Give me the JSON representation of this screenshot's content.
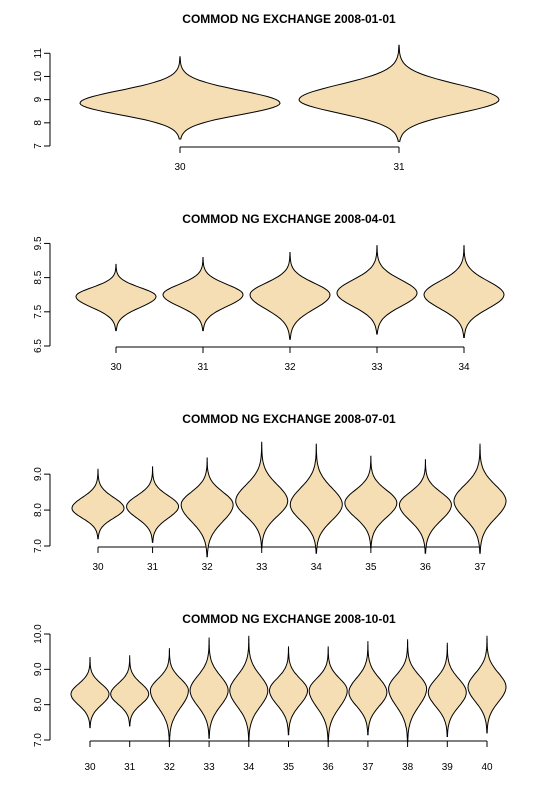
{
  "style": {
    "violin_fill": "#F5DEB3",
    "stroke": "#000000"
  },
  "chart_data": [
    {
      "type": "violin",
      "title": "COMMOD NG EXCHANGE 2008-01-01",
      "categories": [
        "30",
        "31"
      ],
      "yticks": [
        7,
        8,
        9,
        10,
        11
      ],
      "ytick_labels": [
        "7",
        "8",
        "9",
        "10",
        "11"
      ],
      "ylim": [
        7,
        11.4
      ],
      "series": [
        {
          "center": 8.85,
          "min": 7.3,
          "max": 10.85,
          "spread": 8.8
        },
        {
          "center": 9.0,
          "min": 7.2,
          "max": 11.35,
          "spread": 9.0
        }
      ]
    },
    {
      "type": "violin",
      "title": "COMMOD NG EXCHANGE 2008-04-01",
      "categories": [
        "30",
        "31",
        "32",
        "33",
        "34"
      ],
      "yticks": [
        6.5,
        7.5,
        8.5,
        9.5
      ],
      "ytick_labels": [
        "6.5",
        "7.5",
        "8.5",
        "9.5"
      ],
      "ylim": [
        6.5,
        9.6
      ],
      "series": [
        {
          "center": 7.95,
          "min": 6.95,
          "max": 8.9,
          "spread": 8.0
        },
        {
          "center": 8.0,
          "min": 6.95,
          "max": 9.1,
          "spread": 8.0
        },
        {
          "center": 8.0,
          "min": 6.7,
          "max": 9.25,
          "spread": 8.0
        },
        {
          "center": 8.05,
          "min": 6.85,
          "max": 9.45,
          "spread": 8.0
        },
        {
          "center": 8.0,
          "min": 6.75,
          "max": 9.45,
          "spread": 8.0
        }
      ]
    },
    {
      "type": "violin",
      "title": "COMMOD NG EXCHANGE 2008-07-01",
      "categories": [
        "30",
        "31",
        "32",
        "33",
        "34",
        "35",
        "36",
        "37"
      ],
      "yticks": [
        7.0,
        8.0,
        9.0
      ],
      "ytick_labels": [
        "7.0",
        "8.0",
        "9.0"
      ],
      "ylim": [
        7.0,
        9.95
      ],
      "series": [
        {
          "center": 8.05,
          "min": 7.2,
          "max": 9.15,
          "spread": 8.0
        },
        {
          "center": 8.1,
          "min": 7.1,
          "max": 9.2,
          "spread": 8.0
        },
        {
          "center": 8.15,
          "min": 6.7,
          "max": 9.45,
          "spread": 8.0
        },
        {
          "center": 8.25,
          "min": 6.95,
          "max": 9.9,
          "spread": 8.0
        },
        {
          "center": 8.15,
          "min": 6.8,
          "max": 9.85,
          "spread": 8.0
        },
        {
          "center": 8.2,
          "min": 6.95,
          "max": 9.5,
          "spread": 8.0
        },
        {
          "center": 8.15,
          "min": 6.8,
          "max": 9.4,
          "spread": 8.0
        },
        {
          "center": 8.25,
          "min": 6.8,
          "max": 9.85,
          "spread": 8.0
        }
      ]
    },
    {
      "type": "violin",
      "title": "COMMOD NG EXCHANGE 2008-10-01",
      "categories": [
        "30",
        "31",
        "32",
        "33",
        "34",
        "35",
        "36",
        "37",
        "38",
        "39",
        "40"
      ],
      "yticks": [
        7.0,
        8.0,
        9.0,
        10.0
      ],
      "ytick_labels": [
        "7.0",
        "8.0",
        "9.0",
        "10.0"
      ],
      "ylim": [
        7.0,
        10.0
      ],
      "series": [
        {
          "center": 8.3,
          "min": 7.35,
          "max": 9.35,
          "spread": 8.0
        },
        {
          "center": 8.3,
          "min": 7.4,
          "max": 9.4,
          "spread": 8.0
        },
        {
          "center": 8.4,
          "min": 6.95,
          "max": 9.6,
          "spread": 8.0
        },
        {
          "center": 8.4,
          "min": 7.05,
          "max": 9.9,
          "spread": 8.0
        },
        {
          "center": 8.4,
          "min": 7.0,
          "max": 9.95,
          "spread": 8.0
        },
        {
          "center": 8.4,
          "min": 7.15,
          "max": 9.65,
          "spread": 8.0
        },
        {
          "center": 8.4,
          "min": 6.95,
          "max": 9.65,
          "spread": 8.0
        },
        {
          "center": 8.35,
          "min": 7.15,
          "max": 9.8,
          "spread": 8.0
        },
        {
          "center": 8.45,
          "min": 6.95,
          "max": 9.85,
          "spread": 8.0
        },
        {
          "center": 8.35,
          "min": 7.1,
          "max": 9.75,
          "spread": 8.0
        },
        {
          "center": 8.5,
          "min": 7.2,
          "max": 9.95,
          "spread": 8.0
        }
      ]
    }
  ]
}
